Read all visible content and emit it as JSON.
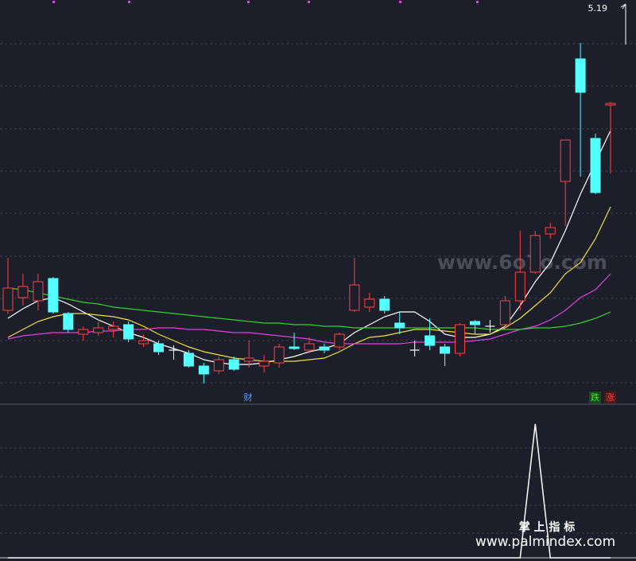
{
  "chart_data": {
    "type": "candlestick",
    "ylim": [
      2.78,
      5.23
    ],
    "max_label": 5.19,
    "up_color": "#ff4040",
    "down_color": "#54ffff",
    "doji_color": "#ffffff",
    "candles": {
      "open": [
        3.28,
        3.36,
        3.34,
        3.48,
        3.26,
        3.13,
        3.14,
        3.16,
        3.19,
        3.07,
        3.07,
        3.03,
        3.01,
        2.93,
        2.9,
        2.97,
        2.96,
        2.93,
        2.95,
        3.05,
        3.03,
        3.05,
        3.05,
        3.28,
        3.3,
        3.35,
        3.2,
        3.03,
        3.12,
        3.05,
        3.01,
        3.21,
        3.18,
        3.19,
        3.34,
        3.52,
        3.76,
        4.09,
        4.86,
        4.36,
        4.57
      ],
      "high": [
        3.61,
        3.51,
        3.51,
        3.49,
        3.27,
        3.18,
        3.21,
        3.21,
        3.21,
        3.13,
        3.09,
        3.06,
        3.03,
        2.95,
        2.99,
        2.99,
        3.09,
        3.0,
        3.07,
        3.14,
        3.11,
        3.07,
        3.14,
        3.61,
        3.39,
        3.37,
        3.27,
        3.09,
        3.23,
        3.07,
        3.2,
        3.22,
        3.22,
        3.37,
        3.78,
        3.78,
        3.83,
        4.35,
        4.96,
        4.39,
        4.59
      ],
      "low": [
        3.26,
        3.31,
        3.28,
        3.26,
        3.14,
        3.09,
        3.12,
        3.11,
        3.08,
        3.05,
        3.0,
        2.97,
        2.92,
        2.82,
        2.88,
        2.9,
        2.92,
        2.89,
        2.92,
        3.03,
        3.01,
        3.01,
        3.03,
        3.27,
        3.27,
        3.26,
        3.13,
        2.99,
        3.03,
        2.93,
        2.99,
        3.13,
        3.14,
        3.17,
        3.28,
        3.51,
        3.73,
        3.81,
        4.12,
        4.01,
        4.14
      ],
      "close": [
        3.42,
        3.43,
        3.46,
        3.27,
        3.16,
        3.16,
        3.17,
        3.18,
        3.1,
        3.09,
        3.02,
        3.03,
        2.93,
        2.88,
        2.97,
        2.91,
        2.98,
        2.96,
        3.05,
        3.04,
        3.07,
        3.03,
        3.13,
        3.44,
        3.35,
        3.28,
        3.17,
        3.03,
        3.06,
        3.01,
        3.19,
        3.19,
        3.18,
        3.34,
        3.52,
        3.75,
        3.8,
        4.35,
        4.65,
        4.02,
        4.58
      ]
    },
    "moving_averages": [
      {
        "color": "#ffffff",
        "values": [
          3.23,
          3.29,
          3.34,
          3.36,
          3.32,
          3.27,
          3.22,
          3.18,
          3.14,
          3.11,
          3.07,
          3.04,
          3.01,
          2.97,
          2.95,
          2.94,
          2.94,
          2.95,
          2.97,
          2.99,
          3.02,
          3.04,
          3.07,
          3.14,
          3.19,
          3.24,
          3.27,
          3.27,
          3.21,
          3.13,
          3.11,
          3.11,
          3.13,
          3.18,
          3.31,
          3.46,
          3.58,
          3.78,
          4.01,
          4.21,
          4.41
        ]
      },
      {
        "color": "#f0e040",
        "values": [
          3.11,
          3.16,
          3.21,
          3.24,
          3.26,
          3.26,
          3.25,
          3.24,
          3.22,
          3.18,
          3.13,
          3.09,
          3.05,
          3.02,
          3.0,
          2.98,
          2.97,
          2.96,
          2.96,
          2.96,
          2.97,
          2.98,
          3.02,
          3.07,
          3.11,
          3.12,
          3.14,
          3.16,
          3.16,
          3.15,
          3.14,
          3.13,
          3.13,
          3.17,
          3.23,
          3.31,
          3.39,
          3.51,
          3.58,
          3.73,
          3.93
        ]
      },
      {
        "color": "#e040e0",
        "values": [
          3.1,
          3.12,
          3.13,
          3.14,
          3.14,
          3.14,
          3.15,
          3.15,
          3.16,
          3.16,
          3.17,
          3.17,
          3.16,
          3.16,
          3.15,
          3.14,
          3.14,
          3.13,
          3.12,
          3.11,
          3.1,
          3.08,
          3.07,
          3.07,
          3.07,
          3.07,
          3.07,
          3.08,
          3.08,
          3.08,
          3.08,
          3.09,
          3.1,
          3.13,
          3.16,
          3.18,
          3.22,
          3.28,
          3.36,
          3.41,
          3.51
        ]
      },
      {
        "color": "#30d030",
        "values": [
          3.42,
          3.41,
          3.39,
          3.37,
          3.35,
          3.33,
          3.32,
          3.3,
          3.29,
          3.28,
          3.27,
          3.26,
          3.25,
          3.24,
          3.23,
          3.22,
          3.21,
          3.2,
          3.2,
          3.19,
          3.19,
          3.18,
          3.18,
          3.17,
          3.17,
          3.17,
          3.17,
          3.17,
          3.17,
          3.17,
          3.17,
          3.17,
          3.16,
          3.16,
          3.16,
          3.17,
          3.17,
          3.18,
          3.2,
          3.23,
          3.27
        ]
      }
    ],
    "markers": {
      "finance": "财",
      "fall": "跌",
      "rise": "涨"
    },
    "indicator": {
      "color": "#ffffff",
      "ylim": [
        0,
        100
      ],
      "values": [
        0,
        0,
        0,
        0,
        0,
        0,
        0,
        0,
        0,
        0,
        0,
        0,
        0,
        0,
        0,
        0,
        0,
        0,
        0,
        0,
        0,
        0,
        0,
        0,
        0,
        0,
        0,
        0,
        0,
        0,
        0,
        0,
        0,
        0,
        0,
        89,
        0,
        0,
        0,
        0,
        0
      ]
    }
  },
  "watermarks": {
    "site": "www.6o7o.com",
    "brand": "掌 上 指 标",
    "url": "www.palmindex.com"
  }
}
